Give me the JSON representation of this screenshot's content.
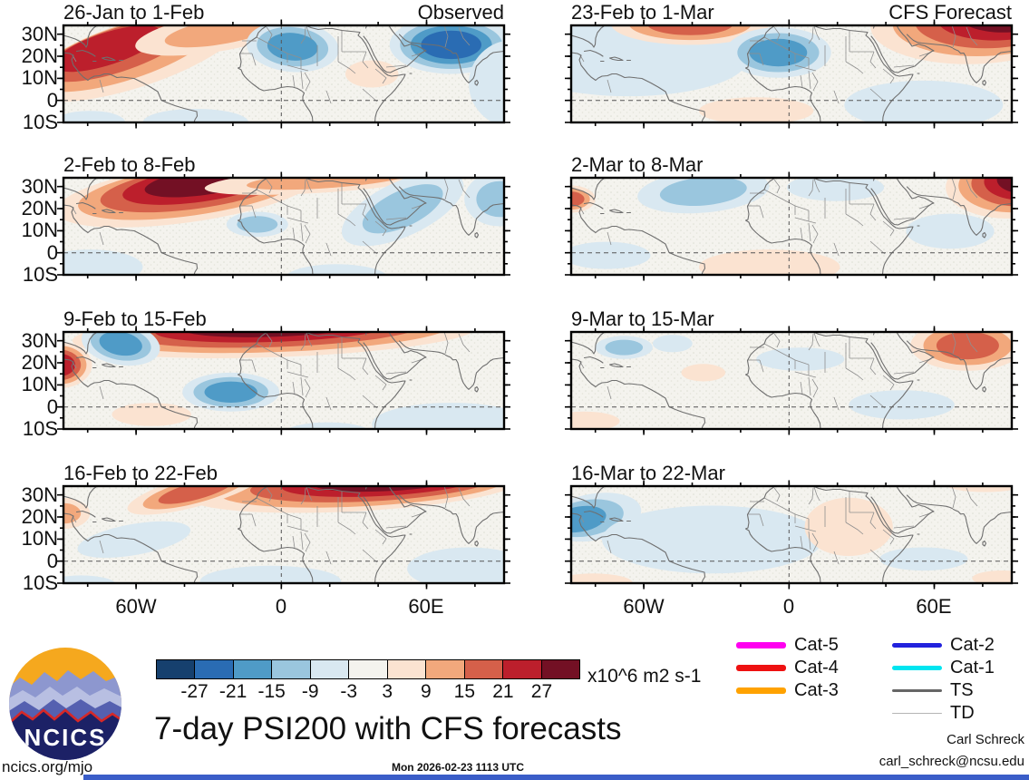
{
  "chart_data": {
    "type": "heatmap",
    "title": "7-day PSI200 with CFS forecasts",
    "layout": "4x2 small-multiple filled-contour longitude/latitude maps; left column observed weekly PSI200 anomalies, right column CFS forecast weeks",
    "domain": {
      "lon_range": [
        -90,
        92
      ],
      "lat_range": [
        -10,
        34
      ]
    },
    "axes": {
      "lat_labels": [
        "30N",
        "20N",
        "10N",
        "0",
        "10S"
      ],
      "lon_labels": [
        "60W",
        "0",
        "60E"
      ]
    },
    "colorbar": {
      "levels": [
        -27,
        -21,
        -15,
        -9,
        -3,
        3,
        9,
        15,
        21,
        27
      ],
      "colors": [
        "#16406e",
        "#2a6cb3",
        "#4f9bc7",
        "#9ac6de",
        "#d9e8f1",
        "#f4f3ee",
        "#fbe3d1",
        "#f2a87c",
        "#d5604a",
        "#bc1f2c",
        "#731024"
      ],
      "unit": "x10^6 m2 s-1"
    },
    "legend": {
      "col1": [
        {
          "label": "Cat-5",
          "color": "#ff00f0",
          "weight": 7
        },
        {
          "label": "Cat-4",
          "color": "#ee1111",
          "weight": 7
        },
        {
          "label": "Cat-3",
          "color": "#ffa200",
          "weight": 7
        }
      ],
      "col2": [
        {
          "label": "Cat-2",
          "color": "#2222dd",
          "weight": 5
        },
        {
          "label": "Cat-1",
          "color": "#00e5f0",
          "weight": 5
        },
        {
          "label": "TS",
          "color": "#666666",
          "weight": 3
        },
        {
          "label": "TD",
          "color": "#b5b5b5",
          "weight": 1.5
        }
      ]
    },
    "panels": [
      {
        "title": "26-Jan to 1-Feb",
        "corner_label": "Observed",
        "anomalies": [
          {
            "t": "warm",
            "x": 0.16,
            "y": 0.3,
            "rx": 0.26,
            "ry": 0.34,
            "rot": -18,
            "d": 4,
            "dx": -0.02,
            "dy": -0.02
          },
          {
            "t": "warm",
            "x": 0.36,
            "y": 0.06,
            "rx": 0.2,
            "ry": 0.2,
            "rot": -10,
            "d": 2
          },
          {
            "t": "cool",
            "x": 0.52,
            "y": 0.22,
            "rx": 0.105,
            "ry": 0.26,
            "rot": 5,
            "d": 3
          },
          {
            "t": "cool",
            "x": 0.88,
            "y": 0.2,
            "rx": 0.14,
            "ry": 0.3,
            "rot": 0,
            "d": 4
          },
          {
            "t": "cool",
            "x": 1.02,
            "y": 0.6,
            "rx": 0.1,
            "ry": 0.45,
            "rot": 0,
            "d": 1
          },
          {
            "t": "warm",
            "x": 0.7,
            "y": 0.5,
            "rx": 0.06,
            "ry": 0.14,
            "rot": 0,
            "d": 1
          },
          {
            "t": "cool",
            "x": 0.3,
            "y": 1.0,
            "rx": 0.12,
            "ry": 0.14,
            "rot": 0,
            "d": 1
          },
          {
            "t": "cool",
            "x": 0.06,
            "y": 1.0,
            "rx": 0.08,
            "ry": 0.12,
            "rot": 0,
            "d": 1
          }
        ]
      },
      {
        "title": "2-Feb to 8-Feb",
        "corner_label": "",
        "anomalies": [
          {
            "t": "warm",
            "x": 0.28,
            "y": 0.16,
            "rx": 0.3,
            "ry": 0.3,
            "rot": -8,
            "d": 5,
            "dx": 0.01,
            "dy": -0.03
          },
          {
            "t": "warm",
            "x": 0.6,
            "y": 0.02,
            "rx": 0.28,
            "ry": 0.13,
            "rot": -4,
            "d": 2
          },
          {
            "t": "cool",
            "x": 0.44,
            "y": 0.48,
            "rx": 0.07,
            "ry": 0.13,
            "rot": 0,
            "d": 2
          },
          {
            "t": "cool",
            "x": 0.77,
            "y": 0.32,
            "rx": 0.15,
            "ry": 0.28,
            "rot": -25,
            "d": 2
          },
          {
            "t": "cool",
            "x": 0.99,
            "y": 0.22,
            "rx": 0.08,
            "ry": 0.28,
            "rot": 0,
            "d": 2
          },
          {
            "t": "cool",
            "x": 0.06,
            "y": 0.92,
            "rx": 0.12,
            "ry": 0.18,
            "rot": 0,
            "d": 1
          },
          {
            "t": "cool",
            "x": 0.62,
            "y": 1.05,
            "rx": 0.12,
            "ry": 0.16,
            "rot": 0,
            "d": 1
          }
        ]
      },
      {
        "title": "9-Feb to 15-Feb",
        "corner_label": "",
        "anomalies": [
          {
            "t": "warm",
            "x": 0.48,
            "y": 0.02,
            "rx": 0.46,
            "ry": 0.24,
            "rot": -2,
            "d": 5,
            "dy": -0.02
          },
          {
            "t": "warm",
            "x": -0.01,
            "y": 0.34,
            "rx": 0.075,
            "ry": 0.24,
            "rot": 0,
            "d": 4
          },
          {
            "t": "cool",
            "x": 0.13,
            "y": 0.12,
            "rx": 0.09,
            "ry": 0.22,
            "rot": 10,
            "d": 3
          },
          {
            "t": "cool",
            "x": 0.38,
            "y": 0.62,
            "rx": 0.11,
            "ry": 0.2,
            "rot": 0,
            "d": 3
          },
          {
            "t": "cool",
            "x": 0.88,
            "y": 0.95,
            "rx": 0.18,
            "ry": 0.22,
            "rot": 0,
            "d": 1
          },
          {
            "t": "warm",
            "x": 0.2,
            "y": 0.85,
            "rx": 0.09,
            "ry": 0.12,
            "rot": 0,
            "d": 1
          },
          {
            "t": "cool",
            "x": 0.6,
            "y": 1.05,
            "rx": 0.1,
            "ry": 0.12,
            "rot": 0,
            "d": 1
          }
        ]
      },
      {
        "title": "16-Feb to 22-Feb",
        "corner_label": "",
        "anomalies": [
          {
            "t": "warm",
            "x": 0.66,
            "y": 0.02,
            "rx": 0.38,
            "ry": 0.24,
            "rot": -3,
            "d": 5,
            "dx": 0.02,
            "dy": -0.02
          },
          {
            "t": "warm",
            "x": 0.3,
            "y": 0.05,
            "rx": 0.16,
            "ry": 0.16,
            "rot": -15,
            "d": 3
          },
          {
            "t": "warm",
            "x": 0.0,
            "y": 0.28,
            "rx": 0.06,
            "ry": 0.16,
            "rot": 0,
            "d": 2
          },
          {
            "t": "cool",
            "x": 0.16,
            "y": 0.55,
            "rx": 0.13,
            "ry": 0.16,
            "rot": -10,
            "d": 1
          },
          {
            "t": "cool",
            "x": 0.47,
            "y": 0.98,
            "rx": 0.16,
            "ry": 0.16,
            "rot": 0,
            "d": 1
          },
          {
            "t": "cool",
            "x": 0.92,
            "y": 0.85,
            "rx": 0.14,
            "ry": 0.22,
            "rot": 0,
            "d": 1
          },
          {
            "t": "cool",
            "x": 0.04,
            "y": 1.02,
            "rx": 0.08,
            "ry": 0.1,
            "rot": 0,
            "d": 1
          }
        ]
      },
      {
        "title": "23-Feb to 1-Mar",
        "corner_label": "CFS Forecast",
        "anomalies": [
          {
            "t": "cool",
            "x": 0.13,
            "y": 0.35,
            "rx": 0.27,
            "ry": 0.38,
            "rot": 0,
            "d": 1
          },
          {
            "t": "warm",
            "x": 0.27,
            "y": -0.02,
            "rx": 0.18,
            "ry": 0.22,
            "rot": 0,
            "d": 3
          },
          {
            "t": "warm",
            "x": 0.9,
            "y": 0.02,
            "rx": 0.22,
            "ry": 0.38,
            "rot": 0,
            "d": 5,
            "dx": 0.02,
            "dy": -0.03
          },
          {
            "t": "cool",
            "x": 0.47,
            "y": 0.28,
            "rx": 0.12,
            "ry": 0.26,
            "rot": 0,
            "d": 3
          },
          {
            "t": "warm",
            "x": 0.42,
            "y": 0.88,
            "rx": 0.13,
            "ry": 0.14,
            "rot": 0,
            "d": 1
          },
          {
            "t": "cool",
            "x": 0.8,
            "y": 0.82,
            "rx": 0.18,
            "ry": 0.25,
            "rot": 0,
            "d": 1
          }
        ]
      },
      {
        "title": "2-Mar to 8-Mar",
        "corner_label": "",
        "anomalies": [
          {
            "t": "warm",
            "x": 0.99,
            "y": 0.1,
            "rx": 0.14,
            "ry": 0.32,
            "rot": 0,
            "d": 5,
            "dx": 0.01,
            "dy": -0.02
          },
          {
            "t": "warm",
            "x": 0.0,
            "y": 0.22,
            "rx": 0.055,
            "ry": 0.14,
            "rot": 0,
            "d": 3
          },
          {
            "t": "cool",
            "x": 0.3,
            "y": 0.14,
            "rx": 0.15,
            "ry": 0.22,
            "rot": -5,
            "d": 2
          },
          {
            "t": "cool",
            "x": 0.6,
            "y": 0.1,
            "rx": 0.11,
            "ry": 0.14,
            "rot": 0,
            "d": 1
          },
          {
            "t": "warm",
            "x": 0.45,
            "y": 0.92,
            "rx": 0.16,
            "ry": 0.18,
            "rot": 0,
            "d": 1
          },
          {
            "t": "cool",
            "x": 0.08,
            "y": 0.8,
            "rx": 0.1,
            "ry": 0.14,
            "rot": 0,
            "d": 1
          },
          {
            "t": "cool",
            "x": 0.86,
            "y": 0.55,
            "rx": 0.1,
            "ry": 0.18,
            "rot": 0,
            "d": 1
          }
        ]
      },
      {
        "title": "9-Mar to 15-Mar",
        "corner_label": "",
        "anomalies": [
          {
            "t": "warm",
            "x": 0.9,
            "y": 0.14,
            "rx": 0.13,
            "ry": 0.26,
            "rot": 0,
            "d": 3
          },
          {
            "t": "cool",
            "x": 0.12,
            "y": 0.16,
            "rx": 0.065,
            "ry": 0.12,
            "rot": 0,
            "d": 2
          },
          {
            "t": "cool",
            "x": 0.23,
            "y": 0.12,
            "rx": 0.045,
            "ry": 0.09,
            "rot": 0,
            "d": 1
          },
          {
            "t": "warm",
            "x": 0.3,
            "y": 0.42,
            "rx": 0.05,
            "ry": 0.09,
            "rot": 0,
            "d": 1
          },
          {
            "t": "cool",
            "x": 0.52,
            "y": 0.28,
            "rx": 0.1,
            "ry": 0.12,
            "rot": 0,
            "d": 1
          },
          {
            "t": "warm",
            "x": 0.03,
            "y": 0.92,
            "rx": 0.08,
            "ry": 0.1,
            "rot": 0,
            "d": 1
          },
          {
            "t": "cool",
            "x": 0.75,
            "y": 0.75,
            "rx": 0.12,
            "ry": 0.15,
            "rot": 0,
            "d": 1
          }
        ]
      },
      {
        "title": "16-Mar to 22-Mar",
        "corner_label": "",
        "anomalies": [
          {
            "t": "cool",
            "x": 0.05,
            "y": 0.32,
            "rx": 0.11,
            "ry": 0.24,
            "rot": -10,
            "d": 3,
            "dx": -0.015,
            "dy": 0.01
          },
          {
            "t": "cool",
            "x": 0.32,
            "y": 0.55,
            "rx": 0.25,
            "ry": 0.35,
            "rot": 0,
            "d": 1
          },
          {
            "t": "warm",
            "x": 0.63,
            "y": 0.42,
            "rx": 0.1,
            "ry": 0.3,
            "rot": 0,
            "d": 1
          },
          {
            "t": "warm",
            "x": 0.05,
            "y": 1.0,
            "rx": 0.09,
            "ry": 0.1,
            "rot": 0,
            "d": 1
          },
          {
            "t": "warm",
            "x": 0.94,
            "y": -0.02,
            "rx": 0.09,
            "ry": 0.08,
            "rot": 0,
            "d": 1
          },
          {
            "t": "warm",
            "x": 0.98,
            "y": 0.95,
            "rx": 0.07,
            "ry": 0.08,
            "rot": 0,
            "d": 1
          },
          {
            "t": "cool",
            "x": 0.8,
            "y": 0.75,
            "rx": 0.1,
            "ry": 0.12,
            "rot": 0,
            "d": 1
          }
        ]
      }
    ]
  },
  "footer": {
    "url": "ncics.org/mjo",
    "timestamp": "Mon 2026-02-23 1113 UTC",
    "credit_name": "Carl Schreck",
    "credit_email": "carl_schreck@ncsu.edu",
    "logo_text": "NCICS"
  }
}
